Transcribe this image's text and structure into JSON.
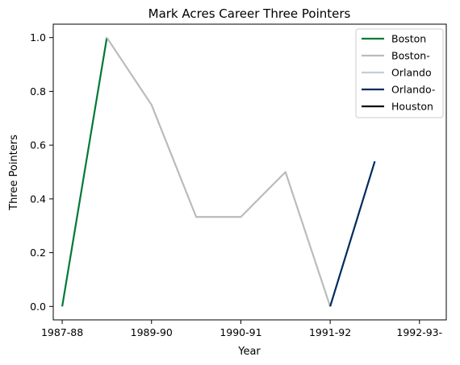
{
  "chart_data": {
    "type": "line",
    "title": "Mark Acres Career Three Pointers",
    "xlabel": "Year",
    "ylabel": "Three Pointers",
    "x_tick_labels": [
      "1987-88",
      "1989-90",
      "1990-91",
      "1991-92",
      "1992-93-"
    ],
    "x_tick_positions": [
      0,
      1,
      2,
      3,
      4
    ],
    "xlim": [
      -0.1,
      4.3
    ],
    "y_ticks": [
      "0.0",
      "0.2",
      "0.4",
      "0.6",
      "0.8",
      "1.0"
    ],
    "y_tick_values": [
      0,
      0.2,
      0.4,
      0.6,
      0.8,
      1.0
    ],
    "ylim": [
      -0.05,
      1.05
    ],
    "grid": false,
    "legend_position": "top-right",
    "series": [
      {
        "name": "Boston",
        "color": "#007A33",
        "points": [
          [
            0,
            0.0
          ],
          [
            0.5,
            1.0
          ]
        ]
      },
      {
        "name": "Boston-",
        "color": "#BBBBBB",
        "points": [
          [
            0.5,
            1.0
          ],
          [
            1.0,
            0.75
          ],
          [
            1.5,
            0.333
          ],
          [
            2.0,
            0.333
          ],
          [
            2.5,
            0.5
          ],
          [
            3.0,
            0.0
          ]
        ]
      },
      {
        "name": "Orlando",
        "color": "#C4CED4",
        "points": []
      },
      {
        "name": "Orlando-",
        "color": "#002B5C",
        "points": [
          [
            3.0,
            0.0
          ],
          [
            3.5,
            0.54
          ]
        ]
      },
      {
        "name": "Houston",
        "color": "#000000",
        "points": []
      }
    ]
  }
}
